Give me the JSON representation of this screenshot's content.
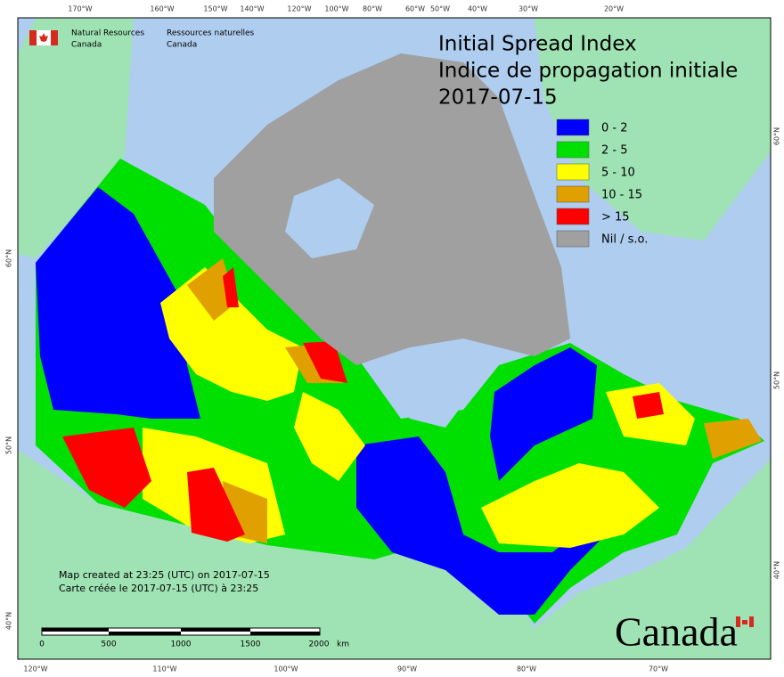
{
  "header": {
    "org_en": [
      "Natural Resources",
      "Canada"
    ],
    "org_fr": [
      "Ressources naturelles",
      "Canada"
    ]
  },
  "title": {
    "en": "Initial Spread Index",
    "fr": "Indice de propagation initiale",
    "date": "2017-07-15"
  },
  "legend": [
    {
      "label": "0 - 2",
      "color": "#0000ff"
    },
    {
      "label": "2 - 5",
      "color": "#00e000"
    },
    {
      "label": "5 - 10",
      "color": "#ffff00"
    },
    {
      "label": "10 - 15",
      "color": "#e0a000"
    },
    {
      "label": "> 15",
      "color": "#ff0000"
    },
    {
      "label": "Nil / s.o.",
      "color": "#a0a0a0"
    }
  ],
  "graticule": {
    "top": [
      "170°W",
      "160°W",
      "150°W",
      "140°W",
      "120°W",
      "100°W",
      "80°W",
      "60°W",
      "50°W",
      "40°W",
      "30°W",
      "20°W"
    ],
    "bottom": [
      "120°W",
      "110°W",
      "100°W",
      "90°W",
      "80°W",
      "70°W"
    ],
    "left": [
      "60°N",
      "50°N",
      "40°N"
    ],
    "right": [
      "60°N",
      "50°N",
      "40°N"
    ]
  },
  "notes": [
    "Map created at 23:25 (UTC) on 2017-07-15",
    "Carte créée le 2017-07-15 (UTC) à 23:25"
  ],
  "scale_bar": {
    "labels": [
      "0",
      "500",
      "1000",
      "1500",
      "2000"
    ],
    "unit": "km"
  },
  "wordmark": "Canada"
}
